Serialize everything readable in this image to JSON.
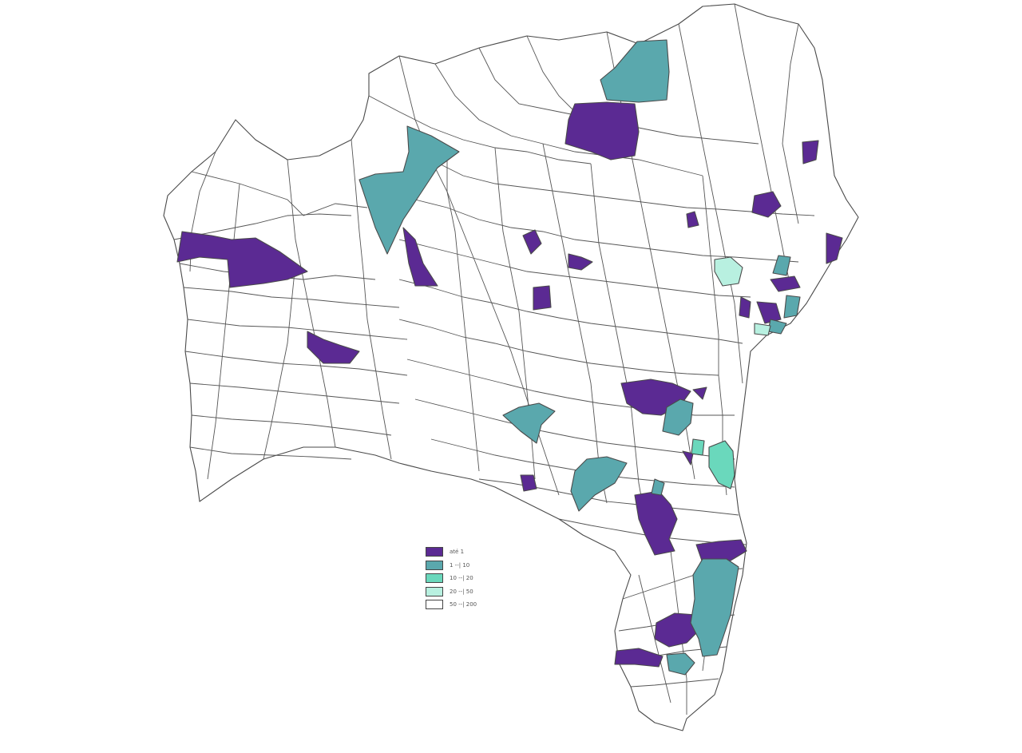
{
  "colors": {
    "class_1": "#5b2a93",
    "class_2": "#5aa8ad",
    "class_3": "#6ad8bc",
    "class_4": "#b8f0e0",
    "class_5": "#ffffff",
    "outline": "#4a4a4a"
  },
  "legend": {
    "items": [
      {
        "label": "até 1",
        "color": "#5b2a93"
      },
      {
        "label": "1 --| 10",
        "color": "#5aa8ad"
      },
      {
        "label": "10 --| 20",
        "color": "#6ad8bc"
      },
      {
        "label": "20 --| 50",
        "color": "#b8f0e0"
      },
      {
        "label": "50 --| 200",
        "color": "#ffffff"
      }
    ]
  }
}
